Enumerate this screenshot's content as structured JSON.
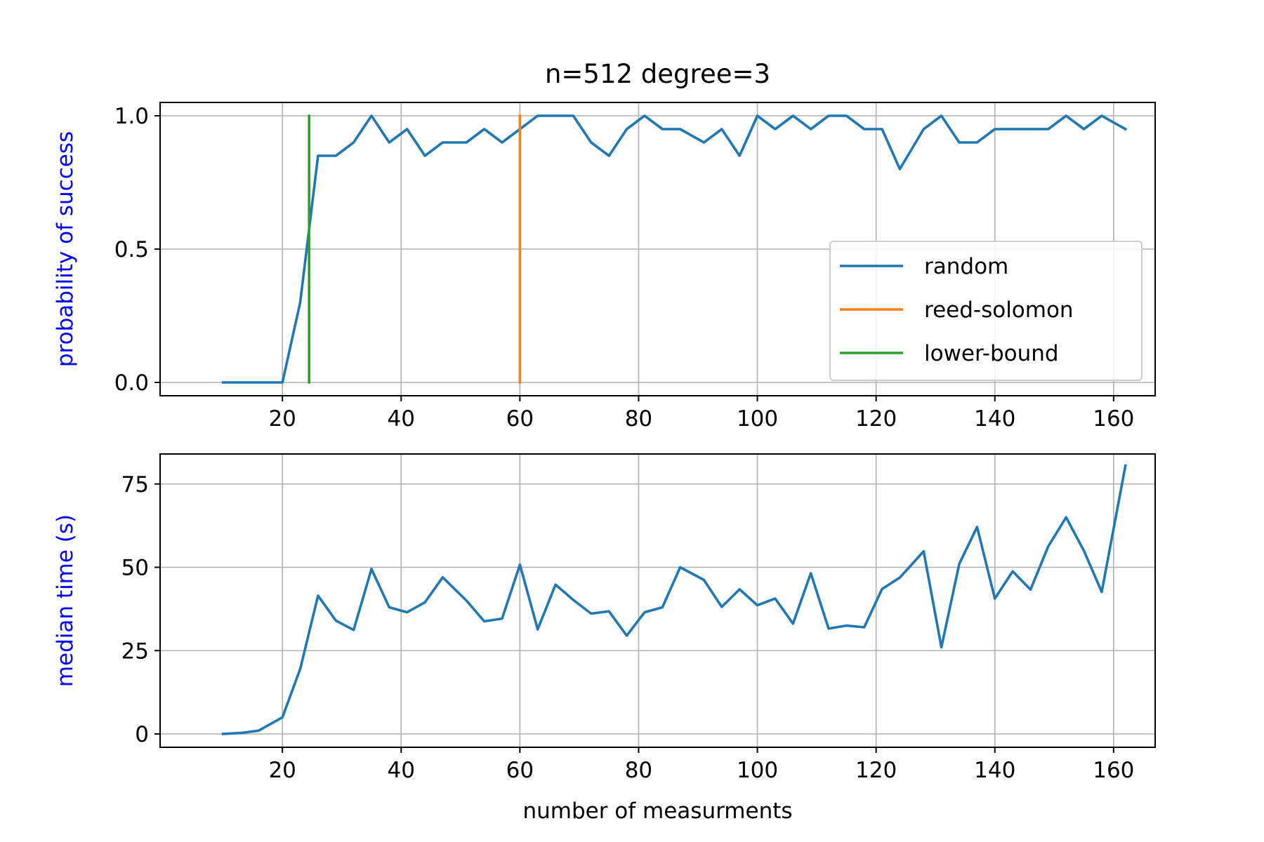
{
  "figure": {
    "title": "n=512 degree=3",
    "xlabel": "number of measurments"
  },
  "chart_data": [
    {
      "type": "line",
      "title": "n=512 degree=3",
      "xlabel": "",
      "ylabel": "probability of success",
      "ylabel_color": "#0000ff",
      "xlim": [
        -0.6,
        167
      ],
      "ylim": [
        -0.05,
        1.05
      ],
      "xticks": [
        20,
        40,
        60,
        80,
        100,
        120,
        140,
        160
      ],
      "yticks": [
        0.0,
        0.5,
        1.0
      ],
      "ytick_labels": [
        "0.0",
        "0.5",
        "1.0"
      ],
      "grid": true,
      "legend": {
        "position": "center-right",
        "entries": [
          {
            "label": "random",
            "color": "#1f77b4"
          },
          {
            "label": "reed-solomon",
            "color": "#ff7f0e"
          },
          {
            "label": "lower-bound",
            "color": "#2ca02c"
          }
        ]
      },
      "series": [
        {
          "name": "random",
          "color": "#1f77b4",
          "x": [
            10,
            13,
            16,
            20,
            23,
            26,
            29,
            32,
            35,
            38,
            41,
            44,
            47,
            51,
            54,
            57,
            60,
            63,
            66,
            69,
            72,
            75,
            78,
            81,
            84,
            87,
            91,
            94,
            97,
            100,
            103,
            106,
            109,
            112,
            115,
            118,
            121,
            124,
            128,
            131,
            134,
            137,
            140,
            143,
            146,
            149,
            152,
            155,
            158,
            162
          ],
          "values": [
            0,
            0,
            0,
            0,
            0.3,
            0.85,
            0.85,
            0.9,
            1.0,
            0.9,
            0.95,
            0.85,
            0.9,
            0.9,
            0.95,
            0.9,
            0.95,
            1.0,
            1.0,
            1.0,
            0.9,
            0.85,
            0.95,
            1.0,
            0.95,
            0.95,
            0.9,
            0.95,
            0.85,
            1.0,
            0.95,
            1.0,
            0.95,
            1.0,
            1.0,
            0.95,
            0.95,
            0.8,
            0.95,
            1.0,
            0.9,
            0.9,
            0.95,
            0.95,
            0.95,
            0.95,
            1.0,
            0.95,
            1.0,
            0.95
          ]
        },
        {
          "name": "reed-solomon",
          "color": "#ff7f0e",
          "x": [
            60,
            60
          ],
          "values": [
            0,
            1
          ]
        },
        {
          "name": "lower-bound",
          "color": "#2ca02c",
          "x": [
            24.5,
            24.5
          ],
          "values": [
            0,
            1
          ]
        }
      ]
    },
    {
      "type": "line",
      "title": "",
      "xlabel": "number of measurments",
      "ylabel": "median time (s)",
      "ylabel_color": "#0000ff",
      "xlim": [
        -0.6,
        167
      ],
      "ylim": [
        -4,
        84
      ],
      "xticks": [
        20,
        40,
        60,
        80,
        100,
        120,
        140,
        160
      ],
      "yticks": [
        0,
        25,
        50,
        75
      ],
      "ytick_labels": [
        "0",
        "25",
        "50",
        "75"
      ],
      "grid": true,
      "series": [
        {
          "name": "random",
          "color": "#1f77b4",
          "x": [
            10,
            13,
            16,
            20,
            23,
            26,
            29,
            32,
            35,
            38,
            41,
            44,
            47,
            51,
            54,
            57,
            60,
            63,
            66,
            69,
            72,
            75,
            78,
            81,
            84,
            87,
            91,
            94,
            97,
            100,
            103,
            106,
            109,
            112,
            115,
            118,
            121,
            124,
            128,
            131,
            134,
            137,
            140,
            143,
            146,
            149,
            152,
            155,
            158,
            162
          ],
          "values": [
            0,
            0.3,
            1,
            5,
            19.5,
            41.5,
            34,
            31.2,
            49.5,
            38,
            36.5,
            39.5,
            47,
            40,
            33.8,
            34.6,
            50.8,
            31.4,
            44.8,
            40.2,
            36.1,
            36.8,
            29.5,
            36.5,
            38,
            50,
            46.2,
            38.1,
            43.4,
            38.6,
            40.6,
            33.1,
            48.2,
            31.6,
            32.5,
            32,
            43.5,
            46.9,
            54.8,
            26,
            51,
            62.1,
            40.6,
            48.8,
            43.3,
            56.3,
            65,
            55,
            42.6,
            80.5
          ]
        }
      ]
    }
  ]
}
